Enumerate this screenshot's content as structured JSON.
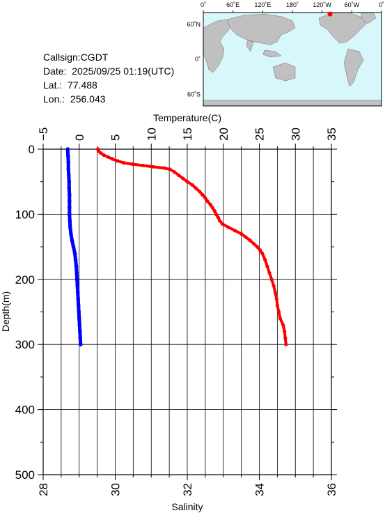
{
  "info": {
    "callsign": "Callsign:CGDT",
    "date": "Date:  2025/09/25 01:19(UTC)",
    "lat": "Lat.:  77.488",
    "lon": "Lon.:  256.043"
  },
  "map": {
    "top_labels": [
      "0˚",
      "60˚E",
      "120˚E",
      "180˚",
      "120˚W",
      "60˚W",
      "0˚"
    ],
    "left_labels": [
      "60˚N",
      "0˚",
      "60˚S"
    ],
    "ocean_color": "#d7f7fb",
    "land_color": "#c0c0c0",
    "marker_color": "#ff0000",
    "station": {
      "lat": 77.488,
      "lon": 256.043
    }
  },
  "chart_data": {
    "type": "line",
    "colors": {
      "temperature": "#ff0000",
      "salinity": "#0000ff"
    },
    "ylabel": "Depth(m)",
    "ylim": [
      0,
      500
    ],
    "yticks": [
      0,
      100,
      200,
      300,
      400,
      500
    ],
    "temperature_axis": {
      "label": "Temperature(C)",
      "range": [
        -5,
        35
      ],
      "ticks": [
        -5,
        0,
        5,
        10,
        15,
        20,
        25,
        30,
        35
      ]
    },
    "salinity_axis": {
      "label": "Salinity",
      "range": [
        28,
        36
      ],
      "ticks": [
        28,
        30,
        32,
        34,
        36
      ]
    },
    "series": [
      {
        "variable": "temperature",
        "points": [
          {
            "depth": 0,
            "value": 2.6
          },
          {
            "depth": 3,
            "value": 2.7
          },
          {
            "depth": 6,
            "value": 3.0
          },
          {
            "depth": 9,
            "value": 3.4
          },
          {
            "depth": 12,
            "value": 4.0
          },
          {
            "depth": 15,
            "value": 4.6
          },
          {
            "depth": 18,
            "value": 5.3
          },
          {
            "depth": 21,
            "value": 6.2
          },
          {
            "depth": 23,
            "value": 7.4
          },
          {
            "depth": 25,
            "value": 8.8
          },
          {
            "depth": 27,
            "value": 10.2
          },
          {
            "depth": 29,
            "value": 11.8
          },
          {
            "depth": 31,
            "value": 12.6
          },
          {
            "depth": 35,
            "value": 13.2
          },
          {
            "depth": 40,
            "value": 13.8
          },
          {
            "depth": 45,
            "value": 14.4
          },
          {
            "depth": 50,
            "value": 15.0
          },
          {
            "depth": 55,
            "value": 15.7
          },
          {
            "depth": 60,
            "value": 16.2
          },
          {
            "depth": 65,
            "value": 16.7
          },
          {
            "depth": 70,
            "value": 17.1
          },
          {
            "depth": 75,
            "value": 17.5
          },
          {
            "depth": 80,
            "value": 17.8
          },
          {
            "depth": 85,
            "value": 18.2
          },
          {
            "depth": 90,
            "value": 18.5
          },
          {
            "depth": 95,
            "value": 18.8
          },
          {
            "depth": 100,
            "value": 19.0
          },
          {
            "depth": 105,
            "value": 19.3
          },
          {
            "depth": 110,
            "value": 19.5
          },
          {
            "depth": 115,
            "value": 19.9
          },
          {
            "depth": 120,
            "value": 20.7
          },
          {
            "depth": 125,
            "value": 21.6
          },
          {
            "depth": 130,
            "value": 22.5
          },
          {
            "depth": 135,
            "value": 23.1
          },
          {
            "depth": 140,
            "value": 23.7
          },
          {
            "depth": 145,
            "value": 24.2
          },
          {
            "depth": 150,
            "value": 24.7
          },
          {
            "depth": 155,
            "value": 25.1
          },
          {
            "depth": 160,
            "value": 25.4
          },
          {
            "depth": 170,
            "value": 25.8
          },
          {
            "depth": 180,
            "value": 26.1
          },
          {
            "depth": 190,
            "value": 26.4
          },
          {
            "depth": 200,
            "value": 26.7
          },
          {
            "depth": 210,
            "value": 27.0
          },
          {
            "depth": 220,
            "value": 27.2
          },
          {
            "depth": 230,
            "value": 27.4
          },
          {
            "depth": 240,
            "value": 27.5
          },
          {
            "depth": 250,
            "value": 27.7
          },
          {
            "depth": 260,
            "value": 27.9
          },
          {
            "depth": 270,
            "value": 28.3
          },
          {
            "depth": 280,
            "value": 28.5
          },
          {
            "depth": 290,
            "value": 28.6
          },
          {
            "depth": 300,
            "value": 28.7
          }
        ]
      },
      {
        "variable": "salinity",
        "points": [
          {
            "depth": 0,
            "value": 28.68
          },
          {
            "depth": 10,
            "value": 28.69
          },
          {
            "depth": 20,
            "value": 28.7
          },
          {
            "depth": 30,
            "value": 28.7
          },
          {
            "depth": 40,
            "value": 28.71
          },
          {
            "depth": 50,
            "value": 28.72
          },
          {
            "depth": 60,
            "value": 28.72
          },
          {
            "depth": 70,
            "value": 28.73
          },
          {
            "depth": 80,
            "value": 28.73
          },
          {
            "depth": 90,
            "value": 28.73
          },
          {
            "depth": 100,
            "value": 28.73
          },
          {
            "depth": 110,
            "value": 28.74
          },
          {
            "depth": 120,
            "value": 28.75
          },
          {
            "depth": 130,
            "value": 28.77
          },
          {
            "depth": 140,
            "value": 28.8
          },
          {
            "depth": 150,
            "value": 28.84
          },
          {
            "depth": 160,
            "value": 28.88
          },
          {
            "depth": 170,
            "value": 28.9
          },
          {
            "depth": 180,
            "value": 28.92
          },
          {
            "depth": 190,
            "value": 28.93
          },
          {
            "depth": 200,
            "value": 28.94
          },
          {
            "depth": 210,
            "value": 28.95
          },
          {
            "depth": 220,
            "value": 28.96
          },
          {
            "depth": 230,
            "value": 28.97
          },
          {
            "depth": 240,
            "value": 28.98
          },
          {
            "depth": 250,
            "value": 28.99
          },
          {
            "depth": 260,
            "value": 29.0
          },
          {
            "depth": 270,
            "value": 29.01
          },
          {
            "depth": 280,
            "value": 29.02
          },
          {
            "depth": 290,
            "value": 29.03
          },
          {
            "depth": 300,
            "value": 29.04
          }
        ]
      }
    ]
  }
}
